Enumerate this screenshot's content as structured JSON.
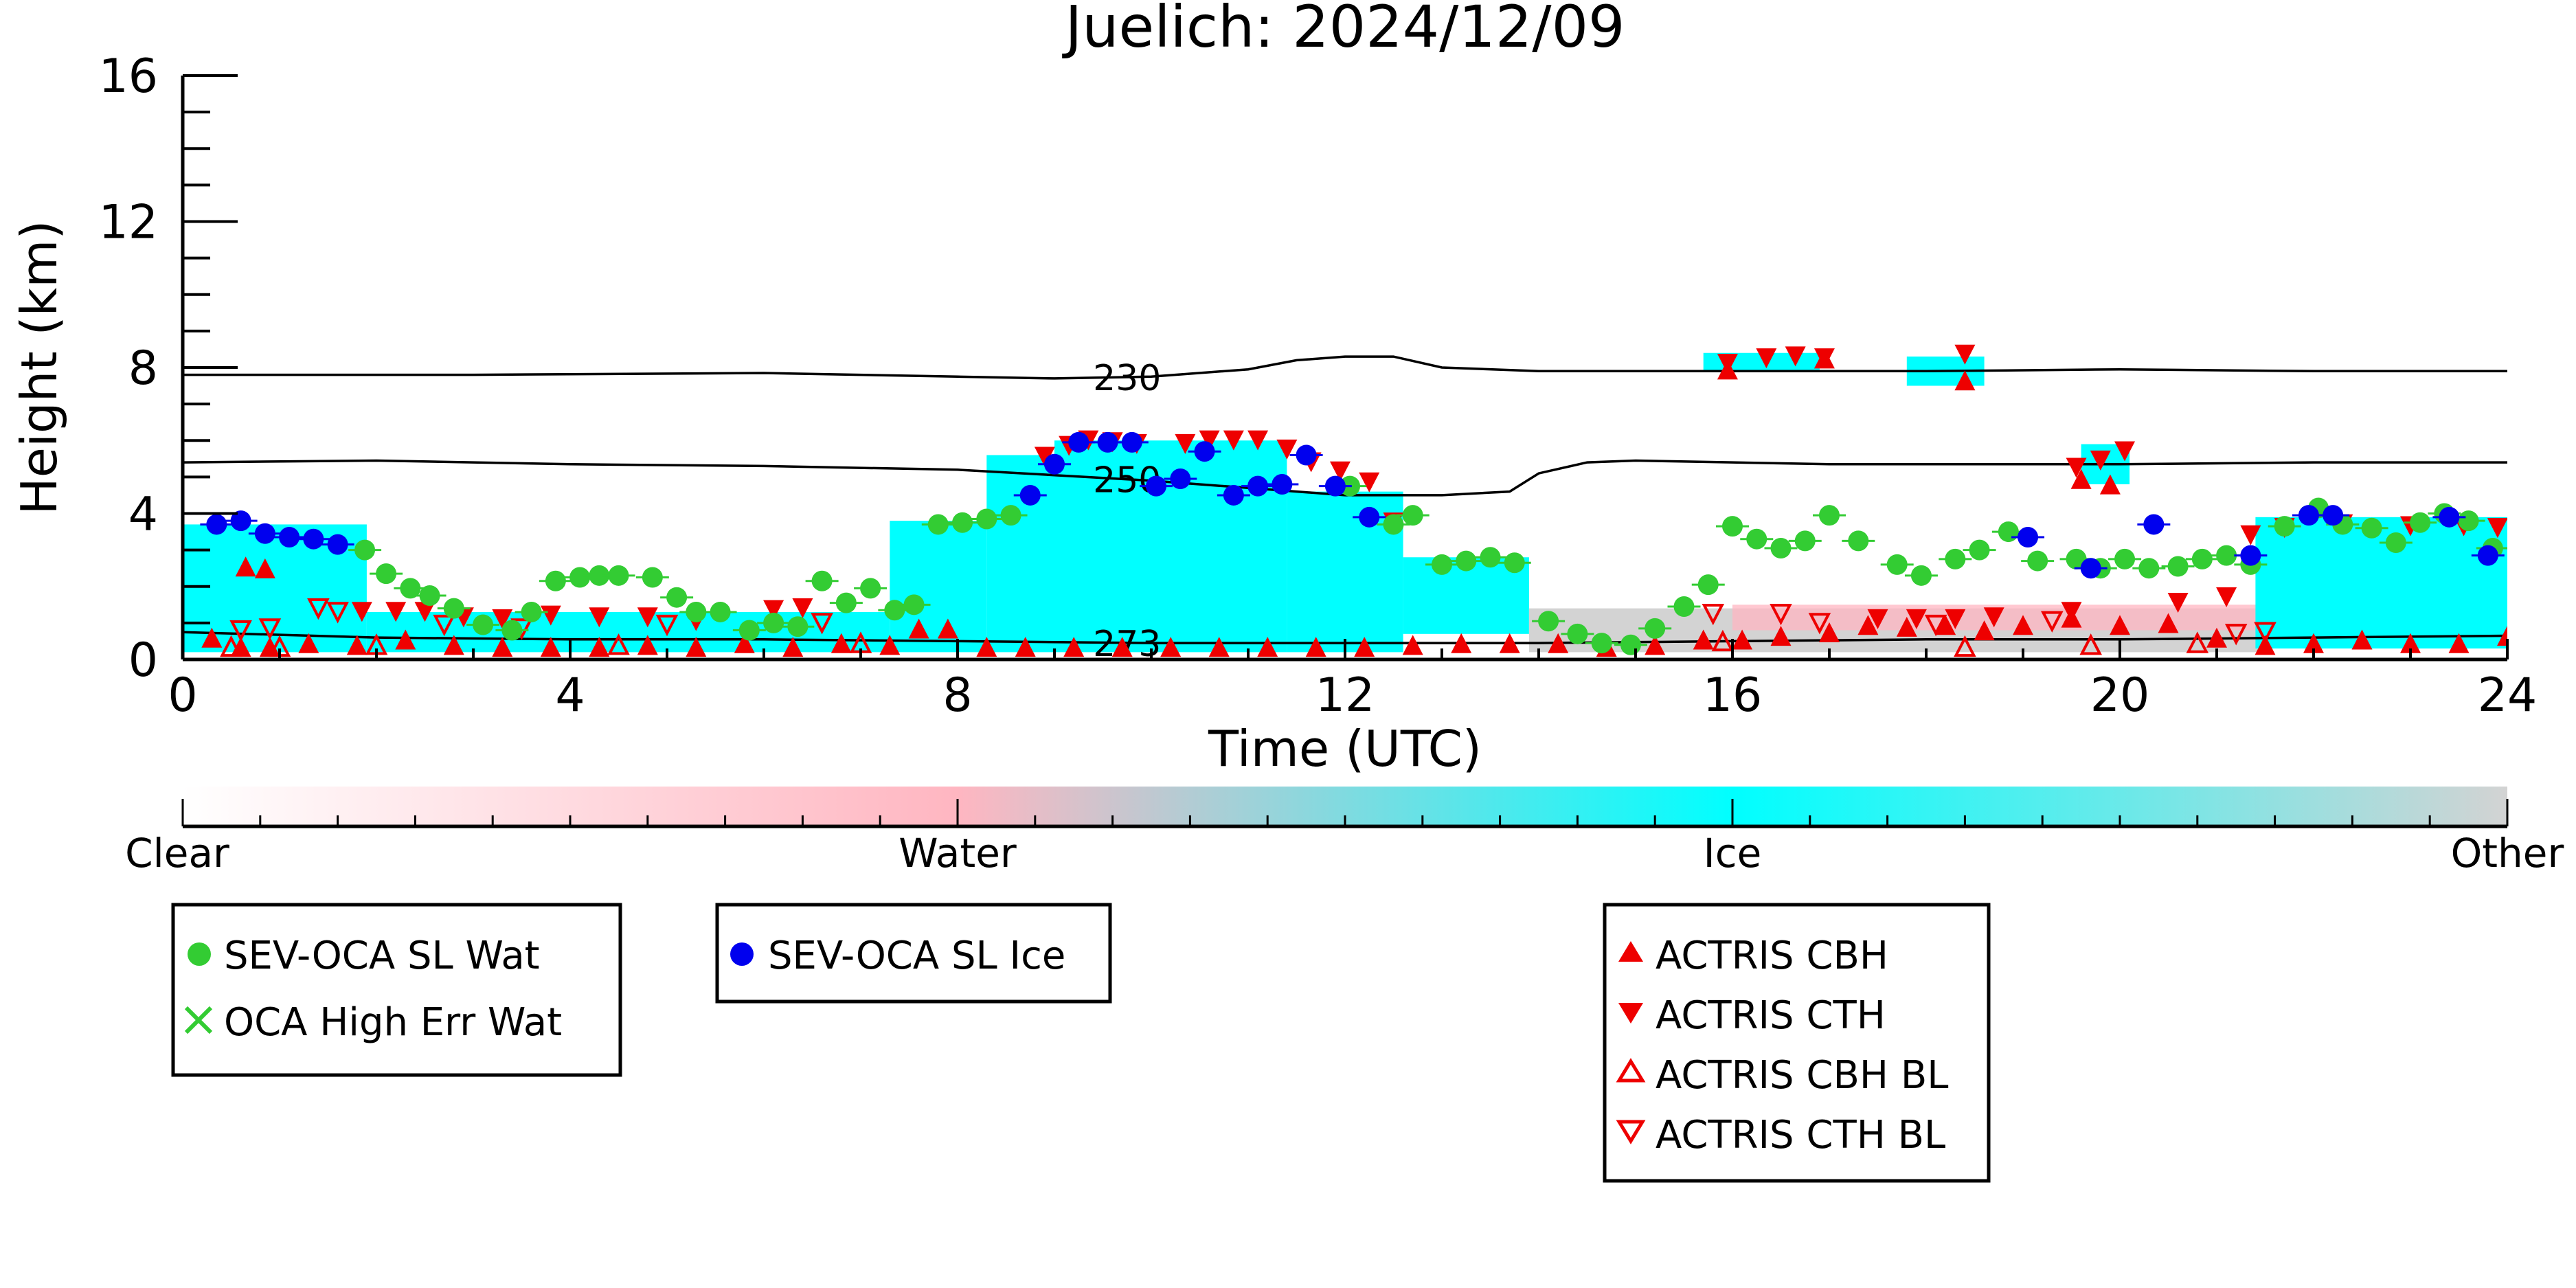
{
  "chart_data": {
    "type": "scatter",
    "title": "Juelich: 2024/12/09",
    "xlabel": "Time (UTC)",
    "ylabel": "Height (km)",
    "xlim": [
      0,
      24
    ],
    "ylim": [
      0,
      16
    ],
    "x_ticks": [
      "0",
      "4",
      "8",
      "12",
      "16",
      "20",
      "24"
    ],
    "y_ticks": [
      "0",
      "4",
      "8",
      "12",
      "16"
    ],
    "colorbar": {
      "labels": [
        "Clear",
        "Water",
        "Ice",
        "Other"
      ],
      "colors": {
        "clear": "#ffffff",
        "water": "#ffb6c1",
        "ice": "#00ffff",
        "other": "#d3d3d3"
      }
    },
    "background_regions": [
      {
        "class": "ice",
        "x0": 0.0,
        "x1": 1.9,
        "y0": 0.2,
        "y1": 3.7
      },
      {
        "class": "ice",
        "x0": 1.9,
        "x1": 7.3,
        "y0": 0.2,
        "y1": 1.3
      },
      {
        "class": "ice",
        "x0": 7.3,
        "x1": 8.3,
        "y0": 0.2,
        "y1": 3.8
      },
      {
        "class": "ice",
        "x0": 8.3,
        "x1": 9.0,
        "y0": 0.2,
        "y1": 5.6
      },
      {
        "class": "ice",
        "x0": 9.0,
        "x1": 11.4,
        "y0": 0.2,
        "y1": 6.0
      },
      {
        "class": "ice",
        "x0": 11.4,
        "x1": 12.6,
        "y0": 0.2,
        "y1": 4.6
      },
      {
        "class": "ice",
        "x0": 12.6,
        "x1": 13.9,
        "y0": 0.7,
        "y1": 2.8
      },
      {
        "class": "other",
        "x0": 13.9,
        "x1": 21.5,
        "y0": 0.2,
        "y1": 1.4
      },
      {
        "class": "water",
        "x0": 16.0,
        "x1": 21.5,
        "y0": 0.8,
        "y1": 1.5
      },
      {
        "class": "ice",
        "x0": 15.7,
        "x1": 16.9,
        "y0": 7.9,
        "y1": 8.4
      },
      {
        "class": "ice",
        "x0": 17.8,
        "x1": 18.6,
        "y0": 7.5,
        "y1": 8.3
      },
      {
        "class": "ice",
        "x0": 19.6,
        "x1": 20.1,
        "y0": 4.8,
        "y1": 5.9
      },
      {
        "class": "ice",
        "x0": 21.4,
        "x1": 24.0,
        "y0": 0.3,
        "y1": 3.9
      }
    ],
    "contours": [
      {
        "label": "230",
        "x": [
          0,
          3,
          6,
          8,
          9,
          10,
          11,
          11.5,
          12,
          12.5,
          13,
          14,
          16,
          18,
          20,
          22,
          24
        ],
        "y": [
          7.8,
          7.8,
          7.85,
          7.75,
          7.7,
          7.75,
          7.95,
          8.2,
          8.3,
          8.3,
          8.0,
          7.9,
          7.9,
          7.9,
          7.95,
          7.9,
          7.9
        ]
      },
      {
        "label": "250",
        "x": [
          0,
          2,
          4,
          6,
          8,
          9,
          10,
          11,
          12,
          13,
          13.7,
          14,
          14.5,
          15,
          16,
          17,
          18,
          20,
          22,
          24
        ],
        "y": [
          5.4,
          5.45,
          5.35,
          5.3,
          5.2,
          5.05,
          4.9,
          4.7,
          4.5,
          4.5,
          4.6,
          5.1,
          5.4,
          5.45,
          5.4,
          5.35,
          5.35,
          5.35,
          5.4,
          5.4
        ]
      },
      {
        "label": "273",
        "x": [
          0,
          2,
          4,
          6,
          8,
          10,
          12,
          14,
          16,
          18,
          20,
          22,
          24
        ],
        "y": [
          0.75,
          0.6,
          0.55,
          0.55,
          0.5,
          0.45,
          0.45,
          0.45,
          0.5,
          0.55,
          0.55,
          0.6,
          0.65
        ]
      }
    ],
    "series": [
      {
        "name": "SEV-OCA SL Wat",
        "color": "#33cc33",
        "marker": "circle",
        "x": [
          1.88,
          2.1,
          2.35,
          2.55,
          2.8,
          3.1,
          3.4,
          3.6,
          3.85,
          4.1,
          4.3,
          4.5,
          4.85,
          5.1,
          5.3,
          5.55,
          5.85,
          6.1,
          6.35,
          6.6,
          6.85,
          7.1,
          7.35,
          7.55,
          7.8,
          8.05,
          8.3,
          8.55,
          12.05,
          12.5,
          12.7,
          13.0,
          13.25,
          13.5,
          13.75,
          14.1,
          14.4,
          14.65,
          14.95,
          15.2,
          15.5,
          15.75,
          16.0,
          16.25,
          16.5,
          16.75,
          17.0,
          17.3,
          17.7,
          17.95,
          18.3,
          18.55,
          18.85,
          19.15,
          19.55,
          19.8,
          20.05,
          20.3,
          20.6,
          20.85,
          21.1,
          21.35,
          21.7,
          22.05,
          22.3,
          22.6,
          22.85,
          23.1,
          23.35,
          23.6,
          23.85
        ],
        "y": [
          3.0,
          2.35,
          1.95,
          1.75,
          1.4,
          0.95,
          0.8,
          1.3,
          2.15,
          2.25,
          2.3,
          2.3,
          2.25,
          1.7,
          1.3,
          1.3,
          0.8,
          1.0,
          0.9,
          2.15,
          1.55,
          1.95,
          1.35,
          1.5,
          3.7,
          3.75,
          3.85,
          3.95,
          4.75,
          3.7,
          3.95,
          2.6,
          2.7,
          2.8,
          2.65,
          1.05,
          0.7,
          0.45,
          0.4,
          0.85,
          1.45,
          2.05,
          3.65,
          3.3,
          3.05,
          3.25,
          3.95,
          3.25,
          2.6,
          2.3,
          2.75,
          3.0,
          3.5,
          2.7,
          2.75,
          2.5,
          2.75,
          2.5,
          2.55,
          2.75,
          2.85,
          2.6,
          3.65,
          4.15,
          3.7,
          3.6,
          3.2,
          3.75,
          4.0,
          3.8,
          3.05
        ]
      },
      {
        "name": "OCA High Err Wat",
        "color": "#33cc33",
        "marker": "x",
        "x": [],
        "y": []
      },
      {
        "name": "SEV-OCA SL Ice",
        "color": "#0000ee",
        "marker": "circle",
        "x": [
          0.35,
          0.6,
          0.85,
          1.1,
          1.35,
          1.6,
          8.75,
          9.0,
          9.25,
          9.55,
          9.8,
          10.05,
          10.3,
          10.55,
          10.85,
          11.1,
          11.35,
          11.6,
          11.9,
          12.25,
          19.05,
          19.7,
          20.35,
          21.35,
          21.95,
          22.2,
          23.4,
          23.8
        ],
        "y": [
          3.7,
          3.8,
          3.45,
          3.35,
          3.3,
          3.15,
          4.5,
          5.35,
          5.95,
          5.95,
          5.95,
          4.75,
          4.95,
          5.7,
          4.5,
          4.75,
          4.8,
          5.6,
          4.75,
          3.9,
          3.35,
          2.5,
          3.7,
          2.85,
          3.95,
          3.95,
          3.9,
          2.85
        ]
      },
      {
        "name": "ACTRIS CBH",
        "color": "#ee0000",
        "marker": "triangle-up",
        "x": [
          0.3,
          0.6,
          0.9,
          1.3,
          1.8,
          2.3,
          2.8,
          3.3,
          3.8,
          4.3,
          4.8,
          5.3,
          5.8,
          6.3,
          6.8,
          7.3,
          7.6,
          7.9,
          8.3,
          8.7,
          9.2,
          9.7,
          10.2,
          10.7,
          11.2,
          11.7,
          12.2,
          12.7,
          13.2,
          13.7,
          14.2,
          14.7,
          15.2,
          15.7,
          16.1,
          16.5,
          17.0,
          17.4,
          17.8,
          18.2,
          18.6,
          19.0,
          19.5,
          20.0,
          20.5,
          21.0,
          21.5,
          22.0,
          22.5,
          23.0,
          23.5,
          24.0,
          15.95,
          16.95,
          18.4,
          19.6,
          19.9,
          0.65,
          0.85
        ],
        "y": [
          0.55,
          0.3,
          0.3,
          0.4,
          0.35,
          0.5,
          0.35,
          0.3,
          0.3,
          0.3,
          0.35,
          0.3,
          0.4,
          0.3,
          0.4,
          0.35,
          0.8,
          0.8,
          0.3,
          0.3,
          0.3,
          0.3,
          0.3,
          0.3,
          0.3,
          0.3,
          0.3,
          0.35,
          0.4,
          0.4,
          0.4,
          0.3,
          0.35,
          0.5,
          0.5,
          0.6,
          0.7,
          0.9,
          0.85,
          0.9,
          0.75,
          0.9,
          1.1,
          0.9,
          0.95,
          0.55,
          0.35,
          0.4,
          0.5,
          0.4,
          0.4,
          0.6,
          7.9,
          8.2,
          7.6,
          4.9,
          4.75,
          2.5,
          2.45
        ]
      },
      {
        "name": "ACTRIS CTH",
        "color": "#ee0000",
        "marker": "triangle-down",
        "x": [
          8.9,
          9.15,
          9.35,
          9.6,
          9.85,
          10.35,
          10.6,
          10.85,
          11.1,
          11.4,
          11.65,
          11.95,
          12.25,
          12.5,
          15.95,
          16.35,
          16.65,
          16.95,
          18.4,
          19.55,
          19.8,
          20.05,
          21.35,
          21.7,
          22.3,
          23.0,
          23.55,
          23.9,
          6.1,
          6.4,
          1.85,
          2.2,
          2.5,
          2.9,
          3.3,
          3.8,
          4.3,
          4.8,
          5.3,
          17.5,
          17.9,
          18.3,
          18.7,
          19.5,
          20.6,
          21.1
        ],
        "y": [
          5.6,
          5.9,
          6.05,
          6.0,
          5.95,
          5.95,
          6.05,
          6.05,
          6.05,
          5.8,
          5.45,
          5.2,
          4.9,
          3.8,
          8.15,
          8.3,
          8.35,
          8.3,
          8.4,
          5.3,
          5.5,
          5.75,
          3.45,
          3.65,
          3.75,
          3.7,
          3.7,
          3.65,
          1.4,
          1.45,
          1.35,
          1.35,
          1.35,
          1.2,
          1.15,
          1.25,
          1.2,
          1.2,
          1.1,
          1.15,
          1.15,
          1.15,
          1.2,
          1.35,
          1.6,
          1.75
        ]
      },
      {
        "name": "ACTRIS CBH BL",
        "color": "#ee0000",
        "marker": "triangle-up-open",
        "x": [
          0.5,
          1.0,
          2.0,
          4.5,
          7.0,
          15.9,
          18.4,
          19.7,
          20.8
        ],
        "y": [
          0.3,
          0.3,
          0.35,
          0.35,
          0.4,
          0.45,
          0.3,
          0.35,
          0.4
        ]
      },
      {
        "name": "ACTRIS CTH BL",
        "color": "#ee0000",
        "marker": "triangle-down-open",
        "x": [
          0.6,
          0.9,
          1.4,
          1.6,
          2.7,
          3.5,
          5.0,
          6.6,
          15.8,
          16.5,
          16.9,
          18.1,
          19.3,
          21.2,
          21.5
        ],
        "y": [
          0.85,
          0.9,
          1.45,
          1.35,
          1.0,
          0.9,
          1.0,
          1.05,
          1.3,
          1.3,
          1.05,
          1.0,
          1.1,
          0.75,
          0.8
        ]
      }
    ],
    "legend": {
      "placement": "below-colorbar",
      "groups": [
        [
          "SEV-OCA SL Wat",
          "OCA High Err Wat"
        ],
        [
          "SEV-OCA SL Ice"
        ],
        [
          "ACTRIS CBH",
          "ACTRIS CTH",
          "ACTRIS CBH BL",
          "ACTRIS CTH BL"
        ]
      ]
    }
  }
}
